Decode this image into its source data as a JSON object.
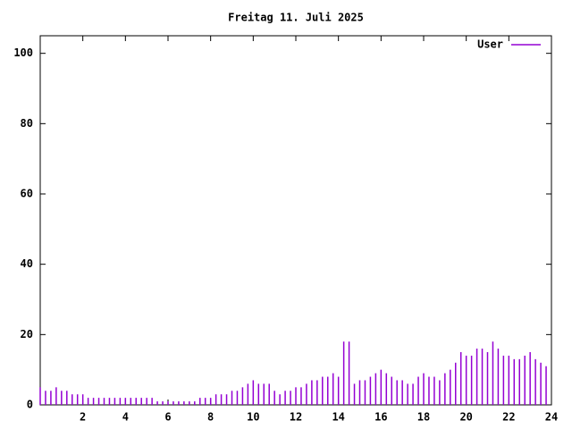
{
  "chart_data": {
    "type": "impulses",
    "title": "Freitag 11. Juli 2025",
    "x": [
      0,
      0.25,
      0.5,
      0.75,
      1,
      1.25,
      1.5,
      1.75,
      2,
      2.25,
      2.5,
      2.75,
      3,
      3.25,
      3.5,
      3.75,
      4,
      4.25,
      4.5,
      4.75,
      5,
      5.25,
      5.5,
      5.75,
      6,
      6.25,
      6.5,
      6.75,
      7,
      7.25,
      7.5,
      7.75,
      8,
      8.25,
      8.5,
      8.75,
      9,
      9.25,
      9.5,
      9.75,
      10,
      10.25,
      10.5,
      10.75,
      11,
      11.25,
      11.5,
      11.75,
      12,
      12.25,
      12.5,
      12.75,
      13,
      13.25,
      13.5,
      13.75,
      14,
      14.25,
      14.5,
      14.75,
      15,
      15.25,
      15.5,
      15.75,
      16,
      16.25,
      16.5,
      16.75,
      17,
      17.25,
      17.5,
      17.75,
      18,
      18.25,
      18.5,
      18.75,
      19,
      19.25,
      19.5,
      19.75,
      20,
      20.25,
      20.5,
      20.75,
      21,
      21.25,
      21.5,
      21.75,
      22,
      22.25,
      22.5,
      22.75,
      23,
      23.25,
      23.5,
      23.75
    ],
    "series": [
      {
        "name": "User",
        "color": "#9400d3",
        "values": [
          5,
          4,
          4,
          5,
          4,
          4,
          3,
          3,
          3,
          2,
          2,
          2,
          2,
          2,
          2,
          2,
          2,
          2,
          2,
          2,
          2,
          2,
          1,
          1,
          1,
          1,
          1,
          1,
          1,
          1,
          2,
          2,
          2,
          3,
          3,
          3,
          4,
          4,
          5,
          6,
          7,
          6,
          6,
          6,
          4,
          3,
          4,
          4,
          5,
          5,
          6,
          7,
          7,
          8,
          8,
          9,
          8,
          18,
          18,
          6,
          7,
          7,
          8,
          9,
          10,
          9,
          8,
          7,
          7,
          6,
          6,
          8,
          9,
          8,
          8,
          7,
          9,
          10,
          12,
          15,
          14,
          14,
          16,
          16,
          15,
          18,
          16,
          14,
          14,
          13,
          13,
          14,
          15,
          13,
          12,
          11
        ]
      }
    ],
    "xlim": [
      0,
      24
    ],
    "xticks": [
      2,
      4,
      6,
      8,
      10,
      12,
      14,
      16,
      18,
      20,
      22,
      24
    ],
    "ylim": [
      0,
      105
    ],
    "yticks": [
      0,
      20,
      40,
      60,
      80,
      100
    ],
    "legend": "top-right"
  }
}
